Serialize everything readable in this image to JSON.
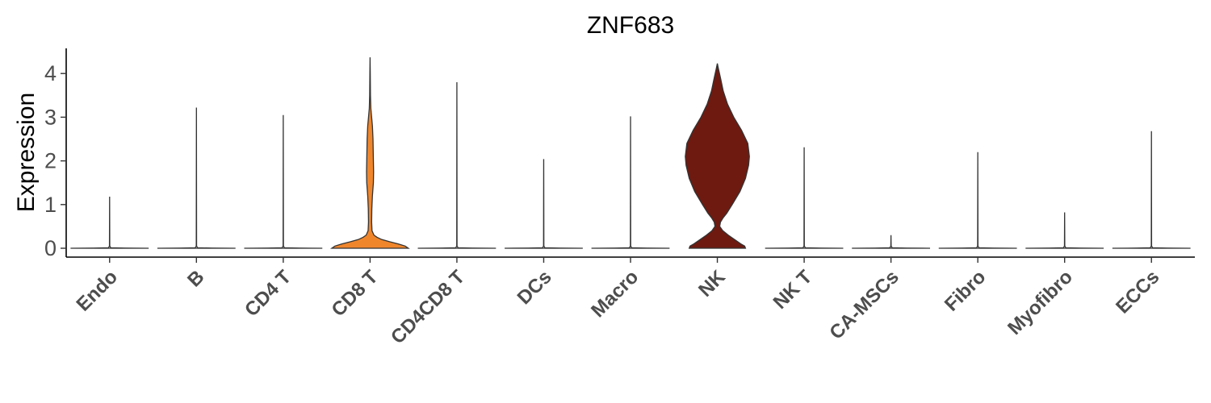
{
  "chart_data": {
    "type": "violin",
    "title": "ZNF683",
    "ylabel": "Expression",
    "xlabel": "",
    "ylim": [
      -0.2,
      4.55
    ],
    "yticks": [
      0,
      1,
      2,
      3,
      4
    ],
    "legend": "none",
    "grid": false,
    "categories": [
      "Endo",
      "B",
      "CD4 T",
      "CD8 T",
      "CD4CD8 T",
      "DCs",
      "Macro",
      "NK",
      "NK T",
      "CA-MSCs",
      "Fibro",
      "Myofibro",
      "ECCs"
    ],
    "series": [
      {
        "category": "Endo",
        "max": 1.18,
        "color": "#ffffff",
        "shape": "spike"
      },
      {
        "category": "B",
        "max": 3.22,
        "color": "#ffffff",
        "shape": "spike"
      },
      {
        "category": "CD4 T",
        "max": 3.05,
        "color": "#ffffff",
        "shape": "spike"
      },
      {
        "category": "CD8 T",
        "max": 4.37,
        "color": "#f0862c",
        "shape": "bimodal",
        "profile": [
          [
            0,
            0.98
          ],
          [
            0.05,
            0.9
          ],
          [
            0.1,
            0.72
          ],
          [
            0.15,
            0.5
          ],
          [
            0.2,
            0.3
          ],
          [
            0.25,
            0.18
          ],
          [
            0.3,
            0.1
          ],
          [
            0.4,
            0.05
          ],
          [
            0.6,
            0.04
          ],
          [
            0.9,
            0.045
          ],
          [
            1.2,
            0.06
          ],
          [
            1.5,
            0.085
          ],
          [
            1.75,
            0.09
          ],
          [
            2.0,
            0.085
          ],
          [
            2.5,
            0.075
          ],
          [
            2.8,
            0.06
          ],
          [
            3.0,
            0.04
          ],
          [
            3.2,
            0.02
          ],
          [
            3.5,
            0.01
          ],
          [
            4.0,
            0.005
          ],
          [
            4.37,
            0
          ]
        ]
      },
      {
        "category": "CD4CD8 T",
        "max": 3.8,
        "color": "#ffffff",
        "shape": "spike"
      },
      {
        "category": "DCs",
        "max": 2.04,
        "color": "#ffffff",
        "shape": "spike"
      },
      {
        "category": "Macro",
        "max": 3.02,
        "color": "#ffffff",
        "shape": "spike"
      },
      {
        "category": "NK",
        "max": 4.23,
        "color": "#6e1a10",
        "shape": "bimodal",
        "profile": [
          [
            0,
            0.72
          ],
          [
            0.05,
            0.7
          ],
          [
            0.1,
            0.6
          ],
          [
            0.2,
            0.44
          ],
          [
            0.3,
            0.28
          ],
          [
            0.4,
            0.14
          ],
          [
            0.5,
            0.06
          ],
          [
            0.6,
            0.08
          ],
          [
            0.7,
            0.15
          ],
          [
            0.8,
            0.24
          ],
          [
            1.0,
            0.38
          ],
          [
            1.3,
            0.58
          ],
          [
            1.6,
            0.72
          ],
          [
            1.9,
            0.8
          ],
          [
            2.1,
            0.82
          ],
          [
            2.4,
            0.78
          ],
          [
            2.7,
            0.62
          ],
          [
            3.0,
            0.42
          ],
          [
            3.3,
            0.26
          ],
          [
            3.6,
            0.15
          ],
          [
            3.9,
            0.08
          ],
          [
            4.1,
            0.03
          ],
          [
            4.23,
            0
          ]
        ]
      },
      {
        "category": "NK T",
        "max": 2.31,
        "color": "#ffffff",
        "shape": "spike"
      },
      {
        "category": "CA-MSCs",
        "max": 0.3,
        "color": "#ffffff",
        "shape": "spike"
      },
      {
        "category": "Fibro",
        "max": 2.2,
        "color": "#ffffff",
        "shape": "spike"
      },
      {
        "category": "Myofibro",
        "max": 0.82,
        "color": "#ffffff",
        "shape": "spike"
      },
      {
        "category": "ECCs",
        "max": 2.68,
        "color": "#ffffff",
        "shape": "spike"
      }
    ]
  }
}
